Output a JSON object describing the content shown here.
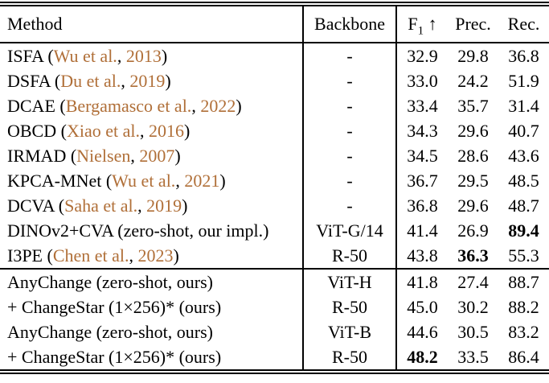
{
  "colors": {
    "citation": "#b06f38",
    "text": "#000000",
    "background": "#ffffff"
  },
  "table": {
    "headers": {
      "method": "Method",
      "backbone": "Backbone",
      "f1_base": "F",
      "f1_sub": "1",
      "f1_arrow": "↑",
      "prec": "Prec.",
      "rec": "Rec."
    },
    "rows": [
      {
        "method_pre": "ISFA (",
        "cite_author": "Wu et al.",
        "cite_sep": ", ",
        "cite_year": "2013",
        "method_post": ")",
        "backbone": "-",
        "f1": "32.9",
        "prec": "29.8",
        "rec": "36.8"
      },
      {
        "method_pre": "DSFA (",
        "cite_author": "Du et al.",
        "cite_sep": ", ",
        "cite_year": "2019",
        "method_post": ")",
        "backbone": "-",
        "f1": "33.0",
        "prec": "24.2",
        "rec": "51.9"
      },
      {
        "method_pre": "DCAE (",
        "cite_author": "Bergamasco et al.",
        "cite_sep": ", ",
        "cite_year": "2022",
        "method_post": ")",
        "backbone": "-",
        "f1": "33.4",
        "prec": "35.7",
        "rec": "31.4"
      },
      {
        "method_pre": "OBCD (",
        "cite_author": "Xiao et al.",
        "cite_sep": ", ",
        "cite_year": "2016",
        "method_post": ")",
        "backbone": "-",
        "f1": "34.3",
        "prec": "29.6",
        "rec": "40.7"
      },
      {
        "method_pre": "IRMAD (",
        "cite_author": "Nielsen",
        "cite_sep": ", ",
        "cite_year": "2007",
        "method_post": ")",
        "backbone": "-",
        "f1": "34.5",
        "prec": "28.6",
        "rec": "43.6"
      },
      {
        "method_pre": "KPCA-MNet (",
        "cite_author": "Wu et al.",
        "cite_sep": ", ",
        "cite_year": "2021",
        "method_post": ")",
        "backbone": "-",
        "f1": "36.7",
        "prec": "29.5",
        "rec": "48.5"
      },
      {
        "method_pre": "DCVA (",
        "cite_author": "Saha et al.",
        "cite_sep": ", ",
        "cite_year": "2019",
        "method_post": ")",
        "backbone": "-",
        "f1": "36.8",
        "prec": "29.6",
        "rec": "48.7"
      },
      {
        "method_pre": "DINOv2+CVA (zero-shot, our impl.)",
        "backbone": "ViT-G/14",
        "f1": "41.4",
        "prec": "26.9",
        "rec": "89.4",
        "rec_bold": true
      },
      {
        "method_pre": "I3PE (",
        "cite_author": "Chen et al.",
        "cite_sep": ", ",
        "cite_year": "2023",
        "method_post": ")",
        "backbone": "R-50",
        "f1": "43.8",
        "prec": "36.3",
        "rec": "55.3",
        "prec_bold": true
      },
      {
        "method_pre": "AnyChange (zero-shot, ours)",
        "backbone": "ViT-H",
        "f1": "41.8",
        "prec": "27.4",
        "rec": "88.7"
      },
      {
        "method_pre": "+ ChangeStar (1×256)* (ours)",
        "backbone": "R-50",
        "f1": "45.0",
        "prec": "30.2",
        "rec": "88.2"
      },
      {
        "method_pre": "AnyChange (zero-shot, ours)",
        "backbone": "ViT-B",
        "f1": "44.6",
        "prec": "30.5",
        "rec": "83.2"
      },
      {
        "method_pre": "+ ChangeStar (1×256)* (ours)",
        "backbone": "R-50",
        "f1": "48.2",
        "prec": "33.5",
        "rec": "86.4",
        "f1_bold": true
      }
    ]
  }
}
